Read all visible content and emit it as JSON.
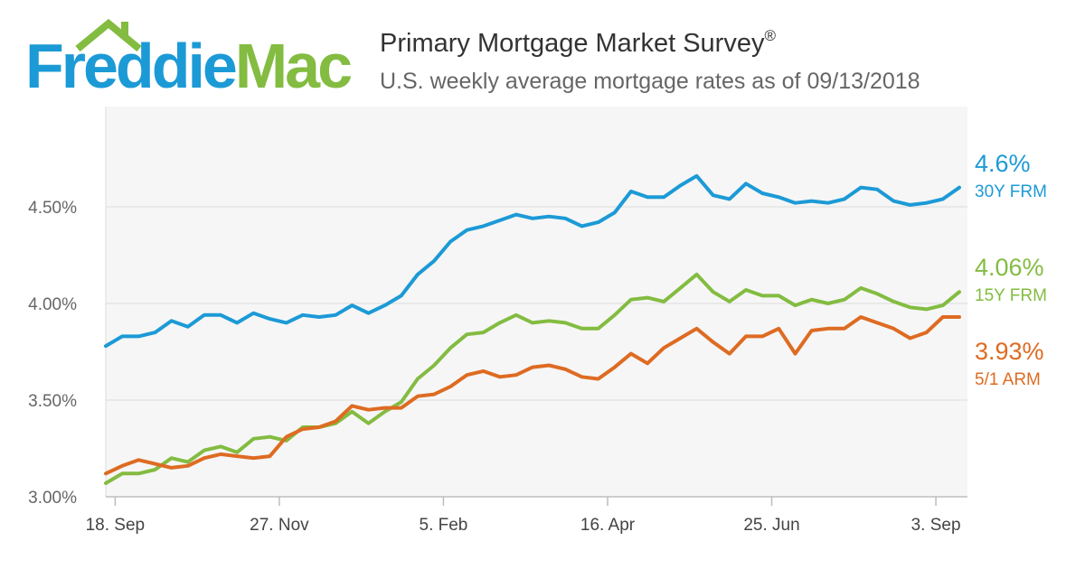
{
  "logo": {
    "word1": "Freddie",
    "word2": "Mac",
    "blue": "#1c9ad6",
    "green": "#83bc41"
  },
  "header": {
    "title": "Primary Mortgage Market Survey",
    "title_mark": "®",
    "subtitle": "U.S. weekly average mortgage rates as of 09/13/2018"
  },
  "chart_data": {
    "type": "line",
    "title": "Primary Mortgage Market Survey",
    "subtitle": "U.S. weekly average mortgage rates as of 09/13/2018",
    "x_unit": "weeks",
    "x": [
      "2017-09-14",
      "2017-09-21",
      "2017-09-28",
      "2017-10-05",
      "2017-10-12",
      "2017-10-19",
      "2017-10-26",
      "2017-11-02",
      "2017-11-09",
      "2017-11-16",
      "2017-11-22",
      "2017-11-30",
      "2017-12-07",
      "2017-12-14",
      "2017-12-21",
      "2017-12-28",
      "2018-01-04",
      "2018-01-11",
      "2018-01-18",
      "2018-01-25",
      "2018-02-01",
      "2018-02-08",
      "2018-02-15",
      "2018-02-22",
      "2018-03-01",
      "2018-03-08",
      "2018-03-15",
      "2018-03-22",
      "2018-03-29",
      "2018-04-05",
      "2018-04-12",
      "2018-04-19",
      "2018-04-26",
      "2018-05-03",
      "2018-05-10",
      "2018-05-17",
      "2018-05-24",
      "2018-05-31",
      "2018-06-07",
      "2018-06-14",
      "2018-06-21",
      "2018-06-28",
      "2018-07-05",
      "2018-07-12",
      "2018-07-19",
      "2018-07-26",
      "2018-08-02",
      "2018-08-09",
      "2018-08-16",
      "2018-08-23",
      "2018-08-30",
      "2018-09-06",
      "2018-09-13"
    ],
    "xticks": [
      {
        "label": "18. Sep",
        "date": "2017-09-18"
      },
      {
        "label": "27. Nov",
        "date": "2017-11-27"
      },
      {
        "label": "5. Feb",
        "date": "2018-02-05"
      },
      {
        "label": "16. Apr",
        "date": "2018-04-16"
      },
      {
        "label": "25. Jun",
        "date": "2018-06-25"
      },
      {
        "label": "3. Sep",
        "date": "2018-09-03"
      }
    ],
    "yticks": [
      {
        "value": 3.0,
        "label": "3.00%"
      },
      {
        "value": 3.5,
        "label": "3.50%"
      },
      {
        "value": 4.0,
        "label": "4.00%"
      },
      {
        "value": 4.5,
        "label": "4.50%"
      }
    ],
    "ylim": [
      3.0,
      5.0
    ],
    "grid": true,
    "legend": "right, end-of-line labels",
    "series": [
      {
        "name": "30Y FRM",
        "end_label": "4.6%",
        "color": "#1c9ad6",
        "values": [
          3.78,
          3.83,
          3.83,
          3.85,
          3.91,
          3.88,
          3.94,
          3.94,
          3.9,
          3.95,
          3.92,
          3.9,
          3.94,
          3.93,
          3.94,
          3.99,
          3.95,
          3.99,
          4.04,
          4.15,
          4.22,
          4.32,
          4.38,
          4.4,
          4.43,
          4.46,
          4.44,
          4.45,
          4.44,
          4.4,
          4.42,
          4.47,
          4.58,
          4.55,
          4.55,
          4.61,
          4.66,
          4.56,
          4.54,
          4.62,
          4.57,
          4.55,
          4.52,
          4.53,
          4.52,
          4.54,
          4.6,
          4.59,
          4.53,
          4.51,
          4.52,
          4.54,
          4.6
        ]
      },
      {
        "name": "15Y FRM",
        "end_label": "4.06%",
        "color": "#83bc41",
        "values": [
          3.07,
          3.12,
          3.12,
          3.14,
          3.2,
          3.18,
          3.24,
          3.26,
          3.23,
          3.3,
          3.31,
          3.29,
          3.36,
          3.36,
          3.38,
          3.44,
          3.38,
          3.44,
          3.49,
          3.61,
          3.68,
          3.77,
          3.84,
          3.85,
          3.9,
          3.94,
          3.9,
          3.91,
          3.9,
          3.87,
          3.87,
          3.94,
          4.02,
          4.03,
          4.01,
          4.08,
          4.15,
          4.06,
          4.01,
          4.07,
          4.04,
          4.04,
          3.99,
          4.02,
          4.0,
          4.02,
          4.08,
          4.05,
          4.01,
          3.98,
          3.97,
          3.99,
          4.06
        ]
      },
      {
        "name": "5/1 ARM",
        "end_label": "3.93%",
        "color": "#de6b22",
        "values": [
          3.12,
          3.16,
          3.19,
          3.17,
          3.15,
          3.16,
          3.2,
          3.22,
          3.21,
          3.2,
          3.21,
          3.31,
          3.35,
          3.36,
          3.39,
          3.47,
          3.45,
          3.46,
          3.46,
          3.52,
          3.53,
          3.57,
          3.63,
          3.65,
          3.62,
          3.63,
          3.67,
          3.68,
          3.66,
          3.62,
          3.61,
          3.67,
          3.74,
          3.69,
          3.77,
          3.82,
          3.87,
          3.8,
          3.74,
          3.83,
          3.83,
          3.87,
          3.74,
          3.86,
          3.87,
          3.87,
          3.93,
          3.9,
          3.87,
          3.82,
          3.85,
          3.93,
          3.93
        ]
      }
    ]
  }
}
